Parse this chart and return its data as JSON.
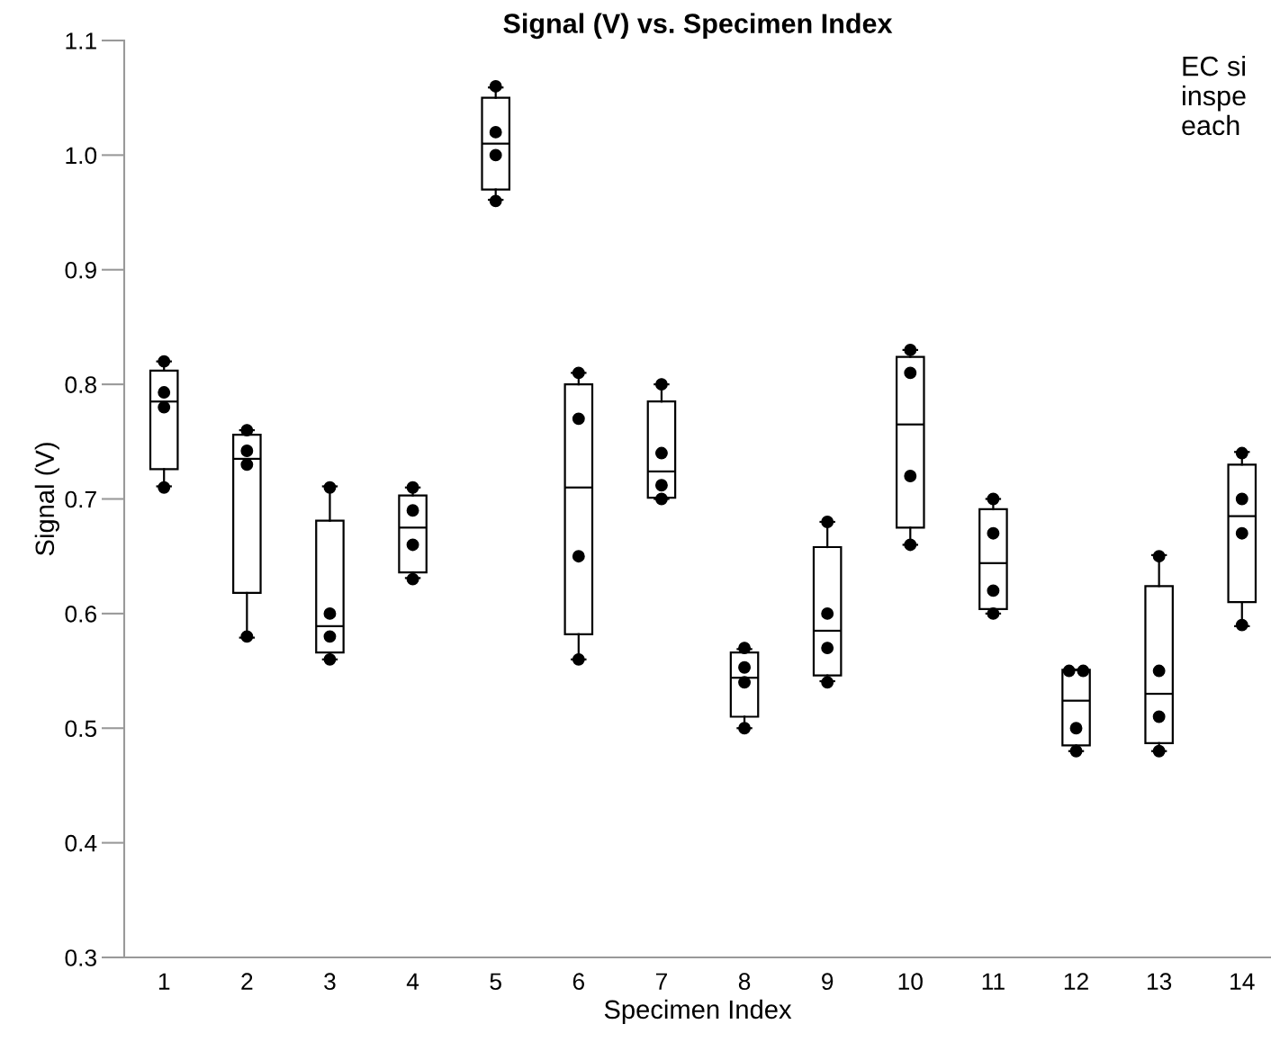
{
  "chart_data": {
    "type": "box",
    "title": "Signal (V) vs. Specimen Index",
    "xlabel": "Specimen Index",
    "ylabel": "Signal (V)",
    "categories": [
      "1",
      "2",
      "3",
      "4",
      "5",
      "6",
      "7",
      "8",
      "9",
      "10",
      "11",
      "12",
      "13",
      "14"
    ],
    "boxes": [
      {
        "low": 0.711,
        "q1": 0.726,
        "median": 0.785,
        "q3": 0.812,
        "high": 0.82
      },
      {
        "low": 0.579,
        "q1": 0.618,
        "median": 0.735,
        "q3": 0.756,
        "high": 0.76
      },
      {
        "low": 0.56,
        "q1": 0.566,
        "median": 0.589,
        "q3": 0.681,
        "high": 0.711
      },
      {
        "low": 0.631,
        "q1": 0.636,
        "median": 0.675,
        "q3": 0.703,
        "high": 0.71
      },
      {
        "low": 0.961,
        "q1": 0.97,
        "median": 1.01,
        "q3": 1.05,
        "high": 1.059
      },
      {
        "low": 0.56,
        "q1": 0.582,
        "median": 0.71,
        "q3": 0.8,
        "high": 0.81
      },
      {
        "low": 0.7,
        "q1": 0.701,
        "median": 0.724,
        "q3": 0.785,
        "high": 0.8
      },
      {
        "low": 0.5,
        "q1": 0.51,
        "median": 0.544,
        "q3": 0.566,
        "high": 0.569
      },
      {
        "low": 0.541,
        "q1": 0.546,
        "median": 0.585,
        "q3": 0.658,
        "high": 0.68
      },
      {
        "low": 0.66,
        "q1": 0.675,
        "median": 0.765,
        "q3": 0.824,
        "high": 0.83
      },
      {
        "low": 0.6,
        "q1": 0.604,
        "median": 0.644,
        "q3": 0.691,
        "high": 0.7
      },
      {
        "low": 0.48,
        "q1": 0.485,
        "median": 0.524,
        "q3": 0.551,
        "high": 0.551
      },
      {
        "low": 0.48,
        "q1": 0.487,
        "median": 0.53,
        "q3": 0.624,
        "high": 0.651
      },
      {
        "low": 0.589,
        "q1": 0.61,
        "median": 0.685,
        "q3": 0.73,
        "high": 0.741
      }
    ],
    "series": [
      {
        "type": "scatter",
        "color": "#000000",
        "x": [
          "1",
          "1",
          "1",
          "1",
          "2",
          "2",
          "2",
          "2",
          "3",
          "3",
          "3",
          "3",
          "4",
          "4",
          "4",
          "4",
          "5",
          "5",
          "5",
          "5",
          "6",
          "6",
          "6",
          "6",
          "7",
          "7",
          "7",
          "7",
          "8",
          "8",
          "8",
          "8",
          "9",
          "9",
          "9",
          "9",
          "10",
          "10",
          "10",
          "10",
          "11",
          "11",
          "11",
          "11",
          "12",
          "12",
          "12",
          "12",
          "13",
          "13",
          "13",
          "13",
          "14",
          "14",
          "14",
          "14"
        ],
        "values": [
          0.82,
          0.793,
          0.78,
          0.71,
          0.76,
          0.742,
          0.73,
          0.58,
          0.71,
          0.6,
          0.58,
          0.56,
          0.71,
          0.69,
          0.66,
          0.63,
          1.06,
          1.02,
          1.0,
          0.96,
          0.81,
          0.77,
          0.65,
          0.56,
          0.8,
          0.74,
          0.712,
          0.7,
          0.57,
          0.553,
          0.54,
          0.5,
          0.68,
          0.6,
          0.57,
          0.54,
          0.83,
          0.81,
          0.72,
          0.66,
          0.7,
          0.67,
          0.62,
          0.6,
          0.55,
          0.55,
          0.5,
          0.48,
          0.65,
          0.55,
          0.51,
          0.48,
          0.74,
          0.7,
          0.67,
          0.59
        ]
      }
    ],
    "ylim": [
      0.3,
      1.1
    ],
    "yticks": [
      0.3,
      0.4,
      0.5,
      0.6,
      0.7,
      0.8,
      0.9,
      {
        "value": 1,
        "label": "1.0"
      },
      1.1
    ],
    "grid": false,
    "legend": false,
    "marker": "circle",
    "annotations": [
      "EC si\ninspe\neach"
    ]
  }
}
